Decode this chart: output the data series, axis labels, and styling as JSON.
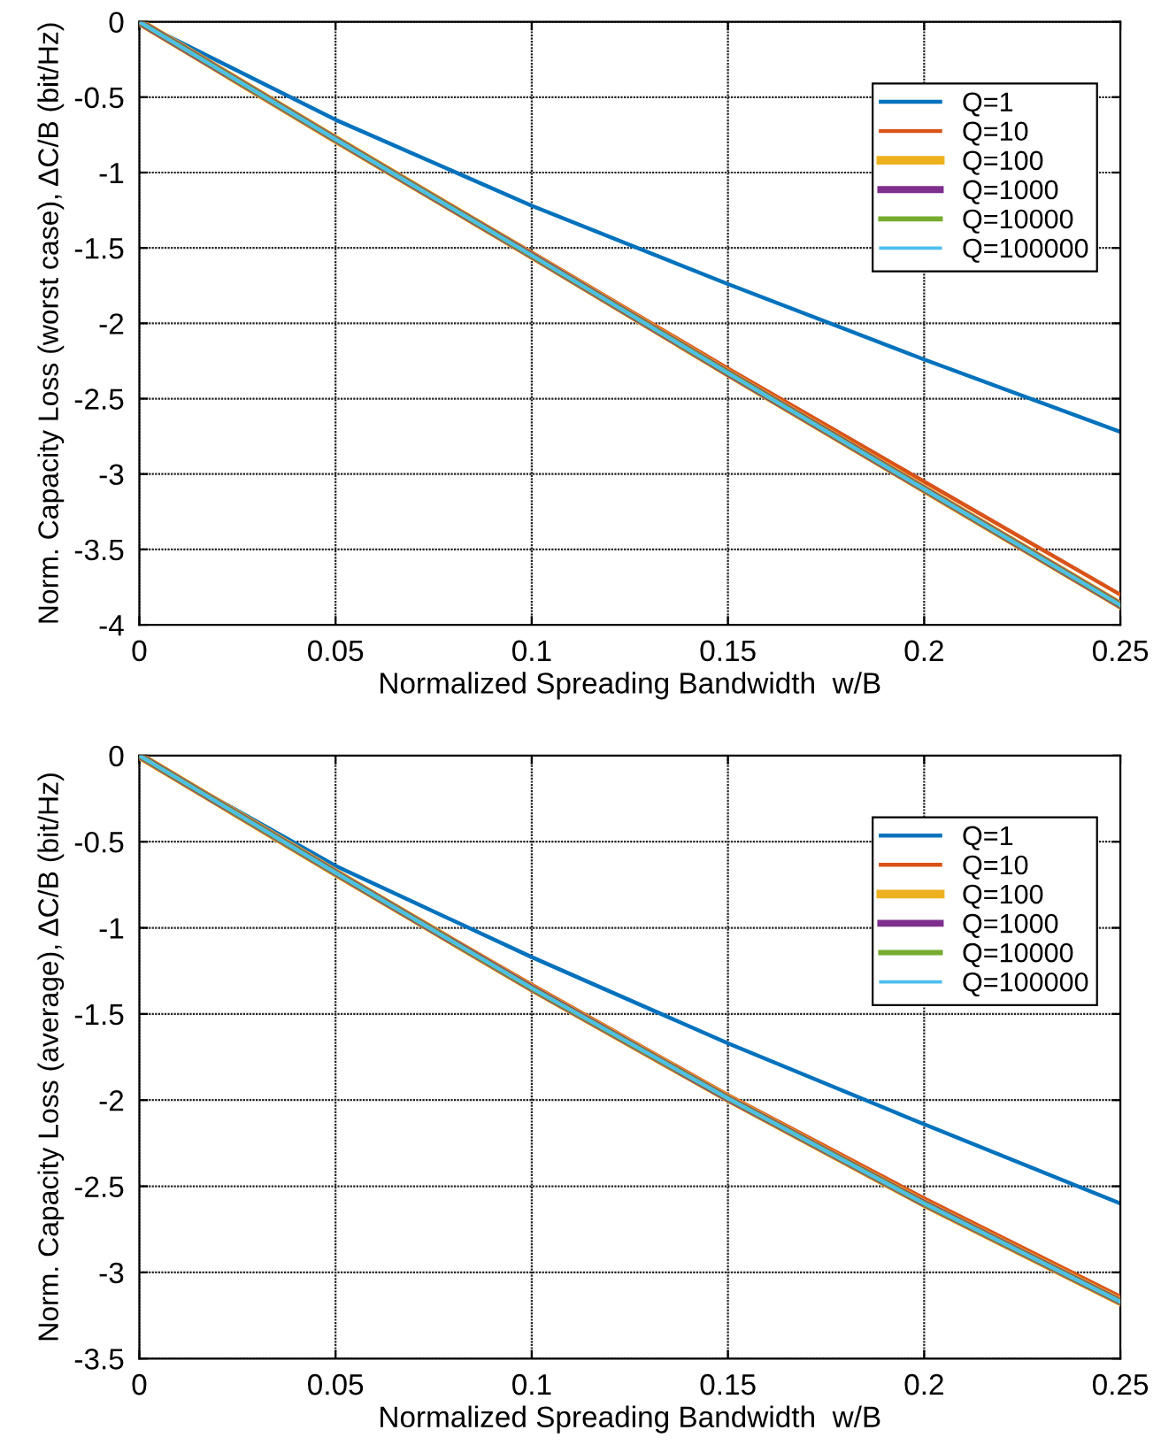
{
  "chart_data": [
    {
      "type": "line",
      "xlabel": "Normalized Spreading Bandwidth  w/B",
      "ylabel": "Norm. Capacity Loss (worst case), ΔC/B (bit/Hz)",
      "x": [
        0,
        0.05,
        0.1,
        0.15,
        0.2,
        0.25
      ],
      "xlim": [
        0,
        0.25
      ],
      "xticks": [
        0,
        0.05,
        0.1,
        0.15,
        0.2,
        0.25
      ],
      "ylim": [
        -4,
        0
      ],
      "yticks": [
        -4,
        -3.5,
        -3,
        -2.5,
        -2,
        -1.5,
        -1,
        -0.5,
        0
      ],
      "grid": true,
      "legend": "top right",
      "series": [
        {
          "name": "Q=1",
          "color": "#0072bd",
          "values": [
            0,
            -0.65,
            -1.22,
            -1.74,
            -2.24,
            -2.72
          ]
        },
        {
          "name": "Q=10",
          "color": "#d95319",
          "values": [
            0,
            -0.77,
            -1.53,
            -2.3,
            -3.05,
            -3.8
          ]
        },
        {
          "name": "Q=100",
          "color": "#edb120",
          "values": [
            0,
            -0.78,
            -1.55,
            -2.33,
            -3.1,
            -3.87
          ]
        },
        {
          "name": "Q=1000",
          "color": "#7e2f8e",
          "values": [
            0,
            -0.78,
            -1.55,
            -2.33,
            -3.1,
            -3.87
          ]
        },
        {
          "name": "Q=10000",
          "color": "#77ac30",
          "values": [
            0,
            -0.78,
            -1.55,
            -2.33,
            -3.1,
            -3.87
          ]
        },
        {
          "name": "Q=100000",
          "color": "#4dbeee",
          "values": [
            0,
            -0.78,
            -1.55,
            -2.33,
            -3.1,
            -3.87
          ]
        }
      ]
    },
    {
      "type": "line",
      "xlabel": "Normalized Spreading Bandwidth  w/B",
      "ylabel": "Norm. Capacity Loss (average), ΔC/B (bit/Hz)",
      "x": [
        0,
        0.05,
        0.1,
        0.15,
        0.2,
        0.25
      ],
      "xlim": [
        0,
        0.25
      ],
      "xticks": [
        0,
        0.05,
        0.1,
        0.15,
        0.2,
        0.25
      ],
      "ylim": [
        -3.5,
        0
      ],
      "yticks": [
        -3.5,
        -3,
        -2.5,
        -2,
        -1.5,
        -1,
        -0.5,
        0
      ],
      "grid": true,
      "legend": "top right",
      "series": [
        {
          "name": "Q=1",
          "color": "#0072bd",
          "values": [
            0,
            -0.64,
            -1.17,
            -1.67,
            -2.14,
            -2.6
          ]
        },
        {
          "name": "Q=10",
          "color": "#d95319",
          "values": [
            0,
            -0.67,
            -1.33,
            -1.97,
            -2.57,
            -3.14
          ]
        },
        {
          "name": "Q=100",
          "color": "#edb120",
          "values": [
            0,
            -0.68,
            -1.35,
            -1.99,
            -2.6,
            -3.17
          ]
        },
        {
          "name": "Q=1000",
          "color": "#7e2f8e",
          "values": [
            0,
            -0.68,
            -1.35,
            -1.99,
            -2.6,
            -3.17
          ]
        },
        {
          "name": "Q=10000",
          "color": "#77ac30",
          "values": [
            0,
            -0.68,
            -1.35,
            -1.99,
            -2.6,
            -3.17
          ]
        },
        {
          "name": "Q=100000",
          "color": "#4dbeee",
          "values": [
            0,
            -0.68,
            -1.35,
            -1.99,
            -2.6,
            -3.17
          ]
        }
      ]
    }
  ]
}
